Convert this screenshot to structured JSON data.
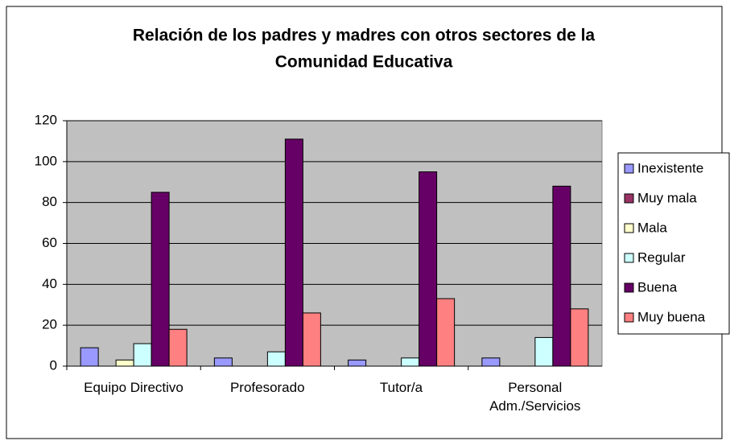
{
  "chart_data": {
    "type": "bar",
    "title": [
      "Relación de los padres y madres con otros sectores de la",
      "Comunidad Educativa"
    ],
    "categories": [
      "Equipo Directivo",
      "Profesorado",
      "Tutor/a",
      "Personal Adm./Servicios"
    ],
    "series": [
      {
        "name": "Inexistente",
        "color": "#9999ff",
        "values": [
          9,
          4,
          3,
          4
        ]
      },
      {
        "name": "Muy mala",
        "color": "#993366",
        "values": [
          0,
          0,
          0,
          0
        ]
      },
      {
        "name": "Mala",
        "color": "#ffffcc",
        "values": [
          3,
          0,
          0,
          0
        ]
      },
      {
        "name": "Regular",
        "color": "#ccffff",
        "values": [
          11,
          7,
          4,
          14
        ]
      },
      {
        "name": "Buena",
        "color": "#660066",
        "values": [
          85,
          111,
          95,
          88
        ]
      },
      {
        "name": "Muy buena",
        "color": "#ff8080",
        "values": [
          18,
          26,
          33,
          28
        ]
      }
    ],
    "ylim": [
      0,
      120
    ],
    "yticks": [
      0,
      20,
      40,
      60,
      80,
      100,
      120
    ],
    "grid": true,
    "legend": "right"
  }
}
